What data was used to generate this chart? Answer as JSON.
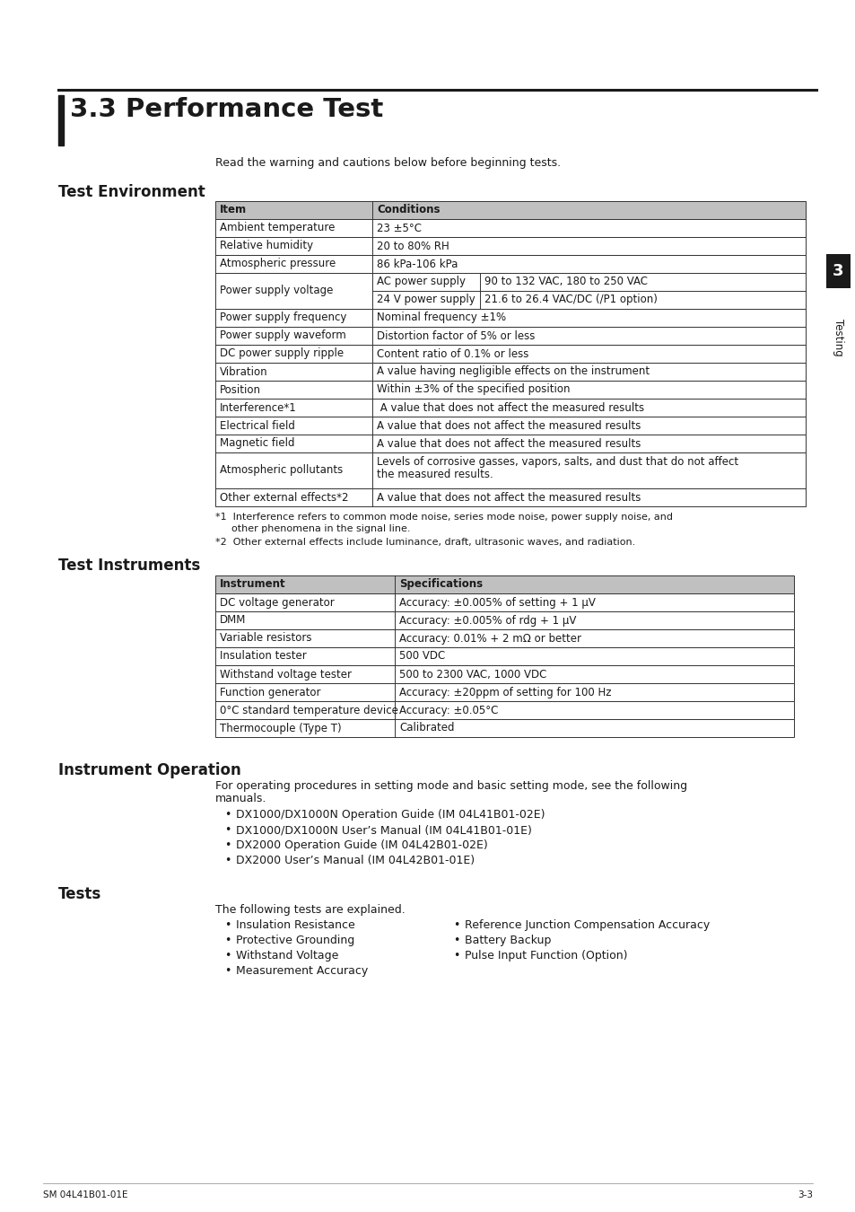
{
  "title_number": "3.3",
  "title_text": "Performance Test",
  "subtitle": "Read the warning and cautions below before beginning tests.",
  "section1_title": "Test Environment",
  "table1_headers": [
    "Item",
    "Conditions"
  ],
  "section2_title": "Test Instruments",
  "table2_headers": [
    "Instrument",
    "Specifications"
  ],
  "table2_rows": [
    [
      "DC voltage generator",
      "Accuracy: ±0.005% of setting + 1 μV"
    ],
    [
      "DMM",
      "Accuracy: ±0.005% of rdg + 1 μV"
    ],
    [
      "Variable resistors",
      "Accuracy: 0.01% + 2 mΩ or better"
    ],
    [
      "Insulation tester",
      "500 VDC"
    ],
    [
      "Withstand voltage tester",
      "500 to 2300 VAC, 1000 VDC"
    ],
    [
      "Function generator",
      "Accuracy: ±20ppm of setting for 100 Hz"
    ],
    [
      "0°C standard temperature device",
      "Accuracy: ±0.05°C"
    ],
    [
      "Thermocouple (Type T)",
      "Calibrated"
    ]
  ],
  "section3_title": "Instrument Operation",
  "section3_intro_line1": "For operating procedures in setting mode and basic setting mode, see the following",
  "section3_intro_line2": "manuals.",
  "section3_bullets": [
    "DX1000/DX1000N Operation Guide (IM 04L41B01-02E)",
    "DX1000/DX1000N User’s Manual (IM 04L41B01-01E)",
    "DX2000 Operation Guide (IM 04L42B01-02E)",
    "DX2000 User’s Manual (IM 04L42B01-01E)"
  ],
  "section4_title": "Tests",
  "section4_intro": "The following tests are explained.",
  "section4_col1_bullets": [
    "Insulation Resistance",
    "Protective Grounding",
    "Withstand Voltage",
    "Measurement Accuracy"
  ],
  "section4_col2_bullets": [
    "Reference Junction Compensation Accuracy",
    "Battery Backup",
    "Pulse Input Function (Option)"
  ],
  "sidebar_number": "3",
  "sidebar_text": "Testing",
  "footer_left": "SM 04L41B01-01E",
  "footer_right": "3-3",
  "background_color": "#ffffff"
}
